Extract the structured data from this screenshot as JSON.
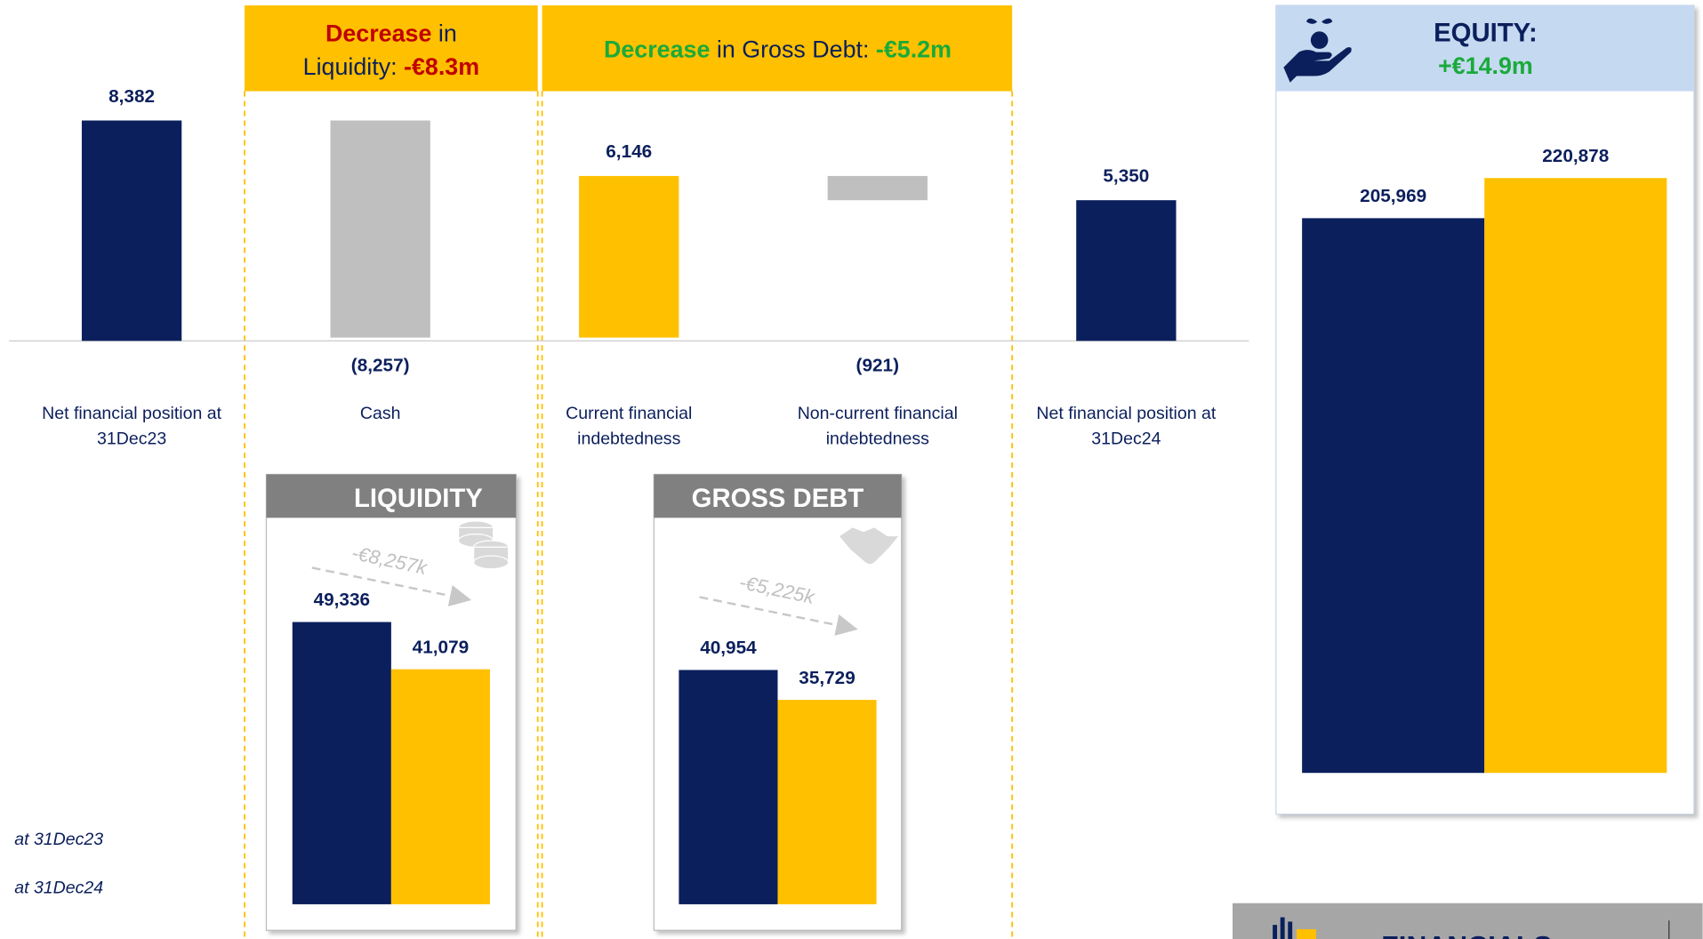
{
  "headers": [
    {
      "lines": [
        [
          "Decrease",
          " in"
        ],
        [
          "Liquidity: ",
          "-€8.3m"
        ]
      ],
      "color": "#c00000"
    },
    {
      "lines": [
        [
          "Decrease",
          " in Gross Debt: ",
          "-€5.2m"
        ]
      ],
      "color": "#1aaa3a"
    }
  ],
  "legend": [
    "at 31Dec23",
    "at 31Dec24"
  ],
  "footer": "FINANCIALS",
  "chart_data": [
    {
      "type": "waterfall",
      "categories": [
        "Net financial position at 31Dec23",
        "Cash",
        "Current financial indebtedness",
        "Non-current financial indebtedness",
        "Net financial position at 31Dec24"
      ],
      "values": [
        8382,
        -8257,
        6146,
        -921,
        5350
      ],
      "value_labels": [
        "8,382",
        "(8,257)",
        "6,146",
        "(921)",
        "5,350"
      ],
      "totals": [
        true,
        false,
        false,
        false,
        true
      ],
      "colors": [
        "#0b1f5c",
        "#bfbfbf",
        "#ffc000",
        "#bfbfbf",
        "#0b1f5c"
      ]
    },
    {
      "type": "bar",
      "title": "LIQUIDITY",
      "values": [
        49336,
        41079
      ],
      "value_labels": [
        "49,336",
        "41,079"
      ],
      "colors": [
        "#0b1f5c",
        "#ffc000"
      ],
      "annotation": "-€8,257k"
    },
    {
      "type": "bar",
      "title": "GROSS DEBT",
      "values": [
        40954,
        35729
      ],
      "value_labels": [
        "40,954",
        "35,729"
      ],
      "colors": [
        "#0b1f5c",
        "#ffc000"
      ],
      "annotation": "-€5,225k"
    },
    {
      "type": "bar",
      "title": "EQUITY:",
      "subtitle": "+€14.9m",
      "values": [
        205969,
        220878
      ],
      "value_labels": [
        "205,969",
        "220,878"
      ],
      "colors": [
        "#0b1f5c",
        "#ffc000"
      ]
    }
  ]
}
